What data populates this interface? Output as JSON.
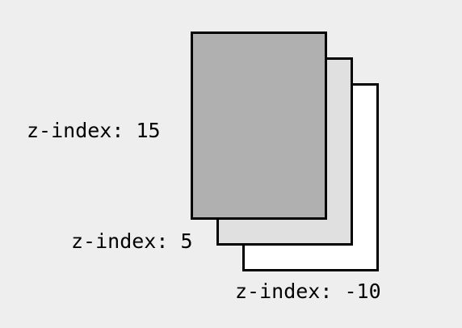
{
  "layers": [
    {
      "label": "z-index: 15",
      "fill": "#b0b0b0"
    },
    {
      "label": "z-index: 5",
      "fill": "#e0e0e0"
    },
    {
      "label": "z-index: -10",
      "fill": "#ffffff"
    }
  ],
  "colors": {
    "background": "#eeeeee",
    "outline": "#000000",
    "text": "#000000"
  }
}
